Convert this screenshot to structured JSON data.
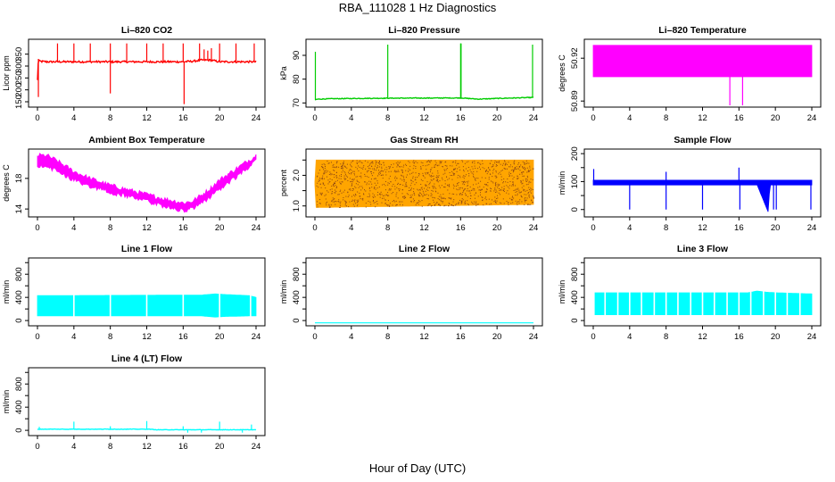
{
  "figure": {
    "title": "RBA_111028  1 Hz Diagnostics",
    "xlabel": "Hour of Day (UTC)"
  },
  "chart_data": [
    {
      "id": "li820-co2",
      "type": "line",
      "title": "Li–820 CO2",
      "ylabel": "Licor ppm",
      "color": "#ff0000",
      "xlim": [
        0,
        24
      ],
      "ylim": [
        135,
        405
      ],
      "xticks": [
        0,
        4,
        8,
        12,
        16,
        20,
        24
      ],
      "yticks": [
        150,
        200,
        250,
        300,
        350
      ],
      "style": "noisy",
      "x": [
        0,
        0.1,
        0.2,
        1,
        4,
        8,
        12,
        16,
        17,
        18,
        19,
        20,
        22,
        24
      ],
      "y": [
        240,
        330,
        320,
        318,
        318,
        318,
        318,
        318,
        320,
        325,
        325,
        318,
        318,
        318
      ],
      "noise": 8,
      "spikes": [
        {
          "x": 0.1,
          "to": 170
        },
        {
          "x": 2.2,
          "to": 395
        },
        {
          "x": 4,
          "to": 395
        },
        {
          "x": 5.8,
          "to": 395
        },
        {
          "x": 8,
          "to": 395
        },
        {
          "x": 8,
          "to": 185
        },
        {
          "x": 9.8,
          "to": 395
        },
        {
          "x": 12,
          "to": 395
        },
        {
          "x": 13.8,
          "to": 395
        },
        {
          "x": 16,
          "to": 395
        },
        {
          "x": 16.1,
          "to": 140
        },
        {
          "x": 17.8,
          "to": 395
        },
        {
          "x": 18.3,
          "to": 370
        },
        {
          "x": 18.7,
          "to": 365
        },
        {
          "x": 19.1,
          "to": 375
        },
        {
          "x": 20,
          "to": 395
        },
        {
          "x": 21.8,
          "to": 395
        },
        {
          "x": 23.8,
          "to": 395
        }
      ]
    },
    {
      "id": "li820-pressure",
      "type": "line",
      "title": "Li–820 Pressure",
      "ylabel": "kPa",
      "color": "#00cc00",
      "xlim": [
        0,
        24
      ],
      "ylim": [
        69,
        96
      ],
      "xticks": [
        0,
        4,
        8,
        12,
        16,
        20,
        24
      ],
      "yticks": [
        70,
        80,
        90
      ],
      "style": "noisy",
      "x": [
        0,
        0.3,
        2,
        8,
        16,
        18,
        20,
        24
      ],
      "y": [
        71.3,
        71.6,
        71.8,
        72.0,
        72.1,
        71.6,
        71.9,
        72.3
      ],
      "noise": 0.3,
      "spikes": [
        {
          "x": 0.05,
          "to": 91.5
        },
        {
          "x": 8,
          "to": 94.5
        },
        {
          "x": 16,
          "to": 95
        },
        {
          "x": 16.05,
          "to": 95
        },
        {
          "x": 23.9,
          "to": 94.5
        }
      ]
    },
    {
      "id": "li820-temperature",
      "type": "line",
      "title": "Li–820 Temperature",
      "ylabel": "degrees C",
      "color": "#ff00ff",
      "xlim": [
        0,
        24
      ],
      "ylim": [
        50.887,
        50.932
      ],
      "xticks": [
        0,
        4,
        8,
        12,
        16,
        20,
        24
      ],
      "yticks": [
        50.89,
        50.92
      ],
      "ytick_labels": [
        "50.89",
        "50.92"
      ],
      "style": "band",
      "x": [
        0,
        24
      ],
      "band_low": [
        50.907,
        50.907
      ],
      "band_high": [
        50.929,
        50.929
      ],
      "spikes": [
        {
          "x": 15,
          "to": 50.887
        },
        {
          "x": 16.4,
          "to": 50.887
        }
      ]
    },
    {
      "id": "ambient-box-temperature",
      "type": "line",
      "title": "Ambient Box Temperature",
      "ylabel": "degrees C",
      "color": "#ff00ff",
      "xlim": [
        0,
        24
      ],
      "ylim": [
        13.2,
        21.6
      ],
      "xticks": [
        0,
        4,
        8,
        12,
        16,
        20,
        24
      ],
      "yticks": [
        14,
        18
      ],
      "style": "band",
      "x": [
        0,
        1,
        2,
        4,
        6,
        8,
        10,
        12,
        14,
        16,
        17,
        18,
        19,
        20,
        22,
        24
      ],
      "band_low": [
        19.5,
        19.6,
        19.0,
        17.8,
        16.9,
        16.2,
        15.6,
        15.0,
        14.3,
        13.8,
        14.0,
        14.8,
        15.6,
        16.6,
        18.3,
        20.2
      ],
      "band_high": [
        21.0,
        21.0,
        20.4,
        18.9,
        17.9,
        17.1,
        16.5,
        15.9,
        15.3,
        14.8,
        15.0,
        15.8,
        16.7,
        17.8,
        19.4,
        21.0
      ],
      "spikes": []
    },
    {
      "id": "gas-stream-rh",
      "type": "line",
      "title": "Gas Stream RH",
      "ylabel": "percent",
      "color": "#ffa500",
      "color2": "#8b4513",
      "xlim": [
        0,
        24
      ],
      "ylim": [
        0.7,
        2.8
      ],
      "xticks": [
        0,
        4,
        8,
        12,
        16,
        20,
        24
      ],
      "yticks": [
        1.0,
        1.5,
        2.0,
        2.5
      ],
      "ytick_labels": [
        "1.0",
        "",
        "2.0",
        ""
      ],
      "style": "band",
      "x": [
        0,
        0.1,
        24
      ],
      "band_low": [
        1.7,
        0.95,
        1.05
      ],
      "band_high": [
        1.8,
        2.5,
        2.5
      ],
      "spikes": []
    },
    {
      "id": "sample-flow",
      "type": "line",
      "title": "Sample Flow",
      "ylabel": "ml/min",
      "color": "#0000ff",
      "xlim": [
        0,
        24
      ],
      "ylim": [
        -20,
        210
      ],
      "xticks": [
        0,
        4,
        8,
        12,
        16,
        20,
        24
      ],
      "yticks": [
        0,
        50,
        100,
        150,
        200
      ],
      "ytick_labels": [
        "0",
        "",
        "100",
        "",
        "200"
      ],
      "style": "band",
      "x": [
        0,
        17.8,
        18,
        19.2,
        19.4,
        24
      ],
      "band_low": [
        88,
        88,
        88,
        -8,
        88,
        88
      ],
      "band_high": [
        105,
        105,
        105,
        105,
        105,
        105
      ],
      "spikes": [
        {
          "x": 0.05,
          "to": 145
        },
        {
          "x": 4,
          "to": 0
        },
        {
          "x": 8,
          "to": 0
        },
        {
          "x": 8,
          "to": 135
        },
        {
          "x": 12,
          "to": 0
        },
        {
          "x": 16,
          "to": 150
        },
        {
          "x": 16.1,
          "to": 0
        },
        {
          "x": 19.8,
          "to": 0
        },
        {
          "x": 20.1,
          "to": 0
        },
        {
          "x": 23.9,
          "to": 0
        }
      ]
    },
    {
      "id": "line-1-flow",
      "type": "line",
      "title": "Line 1 Flow",
      "ylabel": "ml/min",
      "color": "#00ffff",
      "xlim": [
        0,
        24
      ],
      "ylim": [
        -60,
        1050
      ],
      "xticks": [
        0,
        4,
        8,
        12,
        16,
        20,
        24
      ],
      "yticks": [
        0,
        200,
        400,
        600,
        800,
        1000
      ],
      "ytick_labels": [
        "0",
        "",
        "400",
        "",
        "800",
        ""
      ],
      "style": "band",
      "x": [
        0,
        18,
        19.5,
        20.5,
        23.3,
        24
      ],
      "band_low": [
        80,
        80,
        60,
        70,
        80,
        80
      ],
      "band_high": [
        430,
        440,
        460,
        450,
        430,
        400
      ],
      "gaps": [
        4,
        8,
        12,
        16,
        20,
        23.4
      ],
      "spikes": []
    },
    {
      "id": "line-2-flow",
      "type": "line",
      "title": "Line 2 Flow",
      "ylabel": "ml/min",
      "color": "#00ffff",
      "xlim": [
        0,
        24
      ],
      "ylim": [
        -60,
        1050
      ],
      "xticks": [
        0,
        4,
        8,
        12,
        16,
        20,
        24
      ],
      "yticks": [
        0,
        200,
        400,
        600,
        800,
        1000
      ],
      "ytick_labels": [
        "0",
        "",
        "400",
        "",
        "800",
        ""
      ],
      "style": "flat",
      "x": [
        0,
        24
      ],
      "y": [
        -40,
        -40
      ],
      "spikes": []
    },
    {
      "id": "line-3-flow",
      "type": "line",
      "title": "Line 3 Flow",
      "ylabel": "ml/min",
      "color": "#00ffff",
      "xlim": [
        0,
        24
      ],
      "ylim": [
        -60,
        1050
      ],
      "xticks": [
        0,
        4,
        8,
        12,
        16,
        20,
        24
      ],
      "yticks": [
        0,
        200,
        400,
        600,
        800,
        1000
      ],
      "ytick_labels": [
        "0",
        "",
        "400",
        "",
        "800",
        ""
      ],
      "style": "band",
      "x": [
        0.2,
        17,
        18,
        19,
        20,
        24
      ],
      "band_low": [
        100,
        100,
        100,
        100,
        100,
        100
      ],
      "band_high": [
        480,
        480,
        510,
        490,
        480,
        460
      ],
      "gaps": [
        1.3,
        2.7,
        4,
        5.3,
        6.7,
        8,
        9.3,
        10.7,
        12,
        13.3,
        14.7,
        16,
        17.3,
        18.7,
        20,
        21.3,
        22.7
      ],
      "spikes": []
    },
    {
      "id": "line-4-lt-flow",
      "type": "line",
      "title": "Line 4 (LT) Flow",
      "ylabel": "ml/min",
      "color": "#00ffff",
      "xlim": [
        0,
        24
      ],
      "ylim": [
        -60,
        1050
      ],
      "xticks": [
        0,
        4,
        8,
        12,
        16,
        20,
        24
      ],
      "yticks": [
        0,
        200,
        400,
        600,
        800,
        1000
      ],
      "ytick_labels": [
        "0",
        "",
        "400",
        "",
        "800",
        ""
      ],
      "style": "noisy",
      "x": [
        0,
        12.3,
        13,
        24
      ],
      "y": [
        20,
        20,
        10,
        10
      ],
      "noise": 8,
      "spikes": [
        {
          "x": 0.2,
          "to": 60
        },
        {
          "x": 4,
          "to": 150
        },
        {
          "x": 8,
          "to": 70
        },
        {
          "x": 12,
          "to": 160
        },
        {
          "x": 16,
          "to": 70
        },
        {
          "x": 16.5,
          "to": -40
        },
        {
          "x": 18,
          "to": -40
        },
        {
          "x": 20,
          "to": 150
        },
        {
          "x": 22.5,
          "to": -40
        },
        {
          "x": 23.5,
          "to": 100
        }
      ]
    }
  ]
}
